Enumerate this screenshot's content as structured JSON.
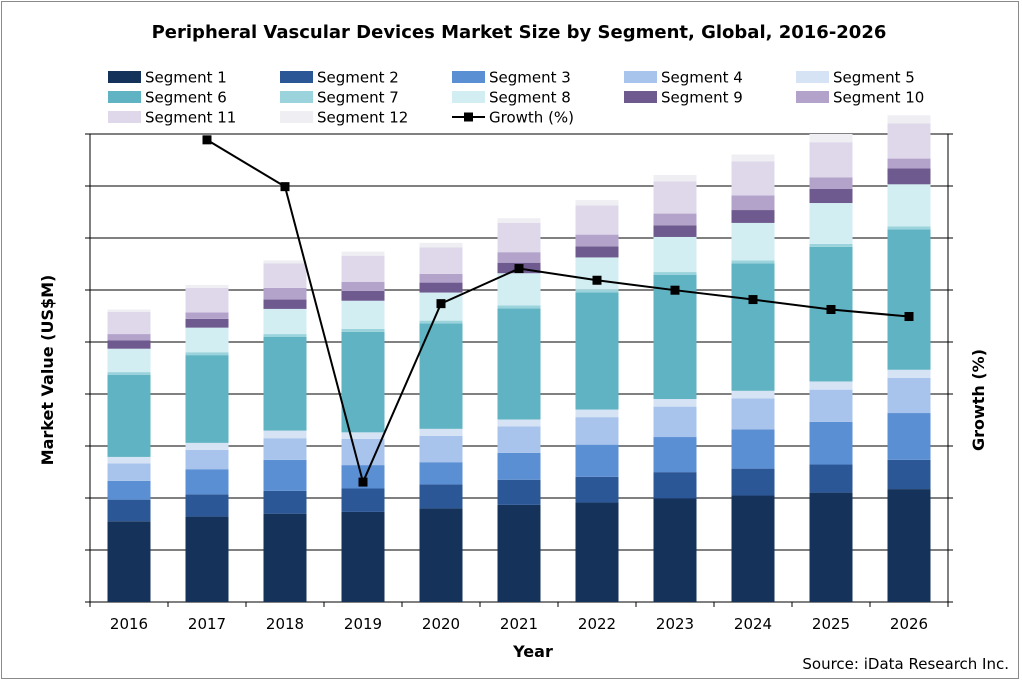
{
  "chart_data": {
    "type": "bar",
    "stacked": true,
    "title": "Peripheral Vascular Devices Market Size by Segment, Global, 2016-2026",
    "xlabel": "Year",
    "ylabel": "Market Value (US$M)",
    "y2label": "Growth (%)",
    "source": "Source: iData Research Inc.",
    "ylim": [
      0,
      8
    ],
    "y2lim": [
      0,
      8
    ],
    "y_tick_labels_shown": false,
    "grid": true,
    "legend_position": "top",
    "categories": [
      "2016",
      "2017",
      "2018",
      "2019",
      "2020",
      "2021",
      "2022",
      "2023",
      "2024",
      "2025",
      "2026"
    ],
    "series": [
      {
        "name": "Segment 1",
        "color": "#15325a",
        "values": [
          1.38,
          1.46,
          1.51,
          1.54,
          1.6,
          1.66,
          1.7,
          1.77,
          1.82,
          1.87,
          1.93
        ]
      },
      {
        "name": "Segment 2",
        "color": "#2b5797",
        "values": [
          0.37,
          0.38,
          0.39,
          0.4,
          0.41,
          0.43,
          0.44,
          0.45,
          0.46,
          0.48,
          0.5
        ]
      },
      {
        "name": "Segment 3",
        "color": "#5b8fd4",
        "values": [
          0.32,
          0.43,
          0.53,
          0.4,
          0.38,
          0.46,
          0.55,
          0.6,
          0.67,
          0.73,
          0.8
        ]
      },
      {
        "name": "Segment 4",
        "color": "#a8c4ec",
        "values": [
          0.3,
          0.33,
          0.37,
          0.45,
          0.45,
          0.45,
          0.47,
          0.52,
          0.53,
          0.55,
          0.6
        ]
      },
      {
        "name": "Segment 5",
        "color": "#d6e3f5",
        "values": [
          0.11,
          0.12,
          0.13,
          0.11,
          0.12,
          0.12,
          0.13,
          0.13,
          0.13,
          0.14,
          0.14
        ]
      },
      {
        "name": "Segment 6",
        "color": "#5fb3c2",
        "values": [
          1.4,
          1.5,
          1.6,
          1.72,
          1.8,
          1.9,
          2.0,
          2.12,
          2.18,
          2.3,
          2.4
        ]
      },
      {
        "name": "Segment 7",
        "color": "#9ad3dc",
        "values": [
          0.05,
          0.05,
          0.05,
          0.05,
          0.05,
          0.05,
          0.05,
          0.05,
          0.05,
          0.05,
          0.05
        ]
      },
      {
        "name": "Segment 8",
        "color": "#d3eef3",
        "values": [
          0.4,
          0.42,
          0.43,
          0.48,
          0.48,
          0.55,
          0.55,
          0.6,
          0.64,
          0.7,
          0.72
        ]
      },
      {
        "name": "Segment 9",
        "color": "#6e5a8e",
        "values": [
          0.14,
          0.15,
          0.16,
          0.17,
          0.17,
          0.18,
          0.19,
          0.2,
          0.22,
          0.24,
          0.27
        ]
      },
      {
        "name": "Segment 10",
        "color": "#b3a3cb",
        "values": [
          0.11,
          0.11,
          0.2,
          0.15,
          0.15,
          0.18,
          0.2,
          0.2,
          0.25,
          0.2,
          0.17
        ]
      },
      {
        "name": "Segment 11",
        "color": "#ded8ea",
        "values": [
          0.38,
          0.42,
          0.42,
          0.45,
          0.45,
          0.5,
          0.5,
          0.55,
          0.58,
          0.6,
          0.6
        ]
      },
      {
        "name": "Segment 12",
        "color": "#efeef2",
        "values": [
          0.04,
          0.05,
          0.05,
          0.07,
          0.08,
          0.08,
          0.09,
          0.11,
          0.12,
          0.14,
          0.14
        ]
      }
    ],
    "line_series": {
      "name": "Growth (%)",
      "axis": "right",
      "color": "#000000",
      "values": [
        null,
        7.9,
        7.1,
        2.05,
        5.1,
        5.7,
        5.5,
        5.33,
        5.17,
        5.0,
        4.88
      ]
    }
  }
}
